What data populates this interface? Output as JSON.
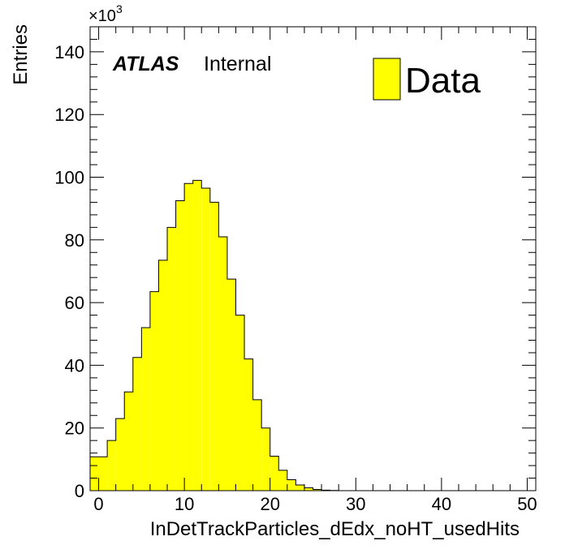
{
  "chart_data": {
    "type": "bar",
    "histogram": true,
    "xlabel": "InDetTrackParticles_dEdx_noHT_usedHits",
    "ylabel": "Entries",
    "y_multiplier": "×10",
    "y_multiplier_exponent": "3",
    "xlim": [
      -1,
      51
    ],
    "ylim": [
      0,
      148000
    ],
    "x_ticks": [
      0,
      10,
      20,
      30,
      40,
      50
    ],
    "y_ticks": [
      0,
      20000,
      40000,
      60000,
      80000,
      100000,
      120000,
      140000
    ],
    "y_tick_labels": [
      "0",
      "20",
      "40",
      "60",
      "80",
      "100",
      "120",
      "140"
    ],
    "bin_edges": [
      -1,
      1,
      2,
      3,
      4,
      5,
      6,
      7,
      8,
      9,
      10,
      11,
      12,
      13,
      14,
      15,
      16,
      17,
      18,
      19,
      20,
      21,
      22,
      23,
      24,
      25,
      26,
      27,
      28
    ],
    "values": [
      10800,
      16000,
      23000,
      31500,
      42500,
      52000,
      63500,
      73500,
      84000,
      92500,
      98000,
      99000,
      96500,
      92000,
      81000,
      67500,
      56000,
      42000,
      29000,
      20000,
      11000,
      6500,
      3500,
      1800,
      900,
      400,
      150,
      50
    ],
    "series": [
      {
        "name": "Data",
        "color": "#ffff00"
      }
    ],
    "legend_position": "top-right",
    "grid": false
  },
  "labels": {
    "experiment": "ATLAS",
    "status": "Internal"
  }
}
